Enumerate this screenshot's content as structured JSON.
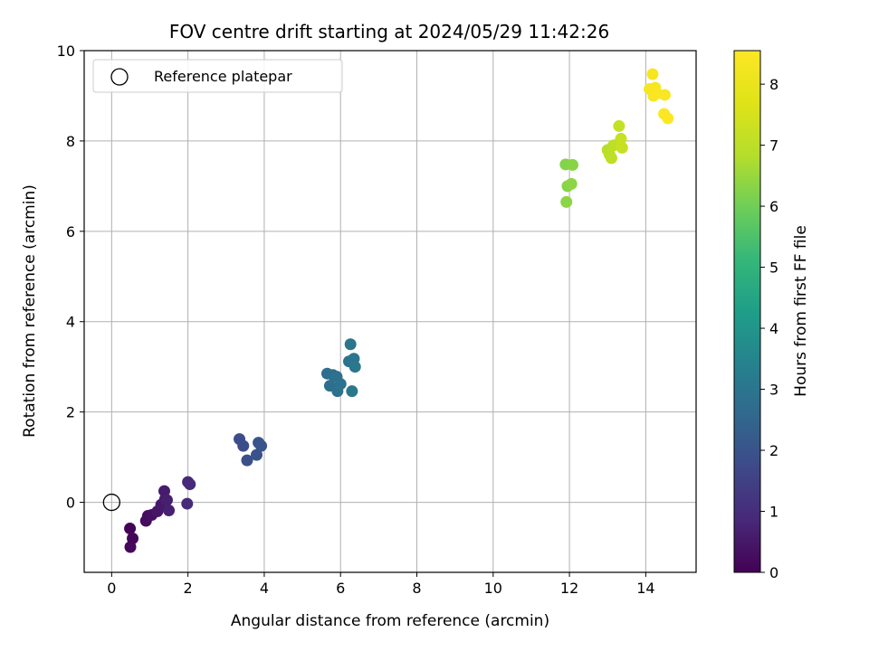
{
  "chart_data": {
    "type": "scatter",
    "title": "FOV centre drift starting at 2024/05/29 11:42:26",
    "xlabel": "Angular distance from reference (arcmin)",
    "ylabel": "Rotation from reference (arcmin)",
    "xlim": [
      -0.72,
      15.32
    ],
    "ylim": [
      -1.55,
      10
    ],
    "xticks": [
      0,
      2,
      4,
      6,
      8,
      10,
      12,
      14
    ],
    "yticks": [
      0,
      2,
      4,
      6,
      8,
      10
    ],
    "grid": true,
    "legend": {
      "placement": "top-left",
      "entries": [
        "Reference platepar"
      ]
    },
    "colorbar": {
      "label": "Hours from first FF file",
      "range": [
        0,
        8.55
      ],
      "ticks": [
        0,
        1,
        2,
        3,
        4,
        5,
        6,
        7,
        8
      ],
      "colormap": "viridis"
    },
    "reference_point": {
      "name": "Reference platepar",
      "x": 0,
      "y": 0
    },
    "points": [
      {
        "x": 0.48,
        "y": -0.58,
        "c": 0.05
      },
      {
        "x": 0.55,
        "y": -0.8,
        "c": 0.1
      },
      {
        "x": 0.49,
        "y": -0.99,
        "c": 0.15
      },
      {
        "x": 0.9,
        "y": -0.41,
        "c": 0.25
      },
      {
        "x": 0.95,
        "y": -0.3,
        "c": 0.3
      },
      {
        "x": 1.05,
        "y": -0.28,
        "c": 0.35
      },
      {
        "x": 1.2,
        "y": -0.2,
        "c": 0.45
      },
      {
        "x": 1.3,
        "y": -0.05,
        "c": 0.5
      },
      {
        "x": 1.4,
        "y": 0.07,
        "c": 0.55
      },
      {
        "x": 1.38,
        "y": 0.25,
        "c": 0.6
      },
      {
        "x": 1.45,
        "y": 0.05,
        "c": 0.65
      },
      {
        "x": 1.5,
        "y": -0.18,
        "c": 0.7
      },
      {
        "x": 2.0,
        "y": 0.45,
        "c": 0.85
      },
      {
        "x": 2.05,
        "y": 0.4,
        "c": 0.9
      },
      {
        "x": 1.98,
        "y": -0.03,
        "c": 0.95
      },
      {
        "x": 3.35,
        "y": 1.4,
        "c": 1.8
      },
      {
        "x": 3.45,
        "y": 1.25,
        "c": 1.85
      },
      {
        "x": 3.55,
        "y": 0.93,
        "c": 1.9
      },
      {
        "x": 3.8,
        "y": 1.05,
        "c": 1.95
      },
      {
        "x": 3.85,
        "y": 1.32,
        "c": 2.0
      },
      {
        "x": 3.92,
        "y": 1.25,
        "c": 2.05
      },
      {
        "x": 5.65,
        "y": 2.85,
        "c": 2.75
      },
      {
        "x": 5.72,
        "y": 2.58,
        "c": 2.8
      },
      {
        "x": 5.8,
        "y": 2.82,
        "c": 2.8
      },
      {
        "x": 5.9,
        "y": 2.78,
        "c": 2.85
      },
      {
        "x": 5.92,
        "y": 2.46,
        "c": 2.85
      },
      {
        "x": 6.0,
        "y": 2.62,
        "c": 2.9
      },
      {
        "x": 6.22,
        "y": 3.12,
        "c": 2.95
      },
      {
        "x": 6.26,
        "y": 3.5,
        "c": 3.0
      },
      {
        "x": 6.35,
        "y": 3.18,
        "c": 3.0
      },
      {
        "x": 6.38,
        "y": 3.0,
        "c": 3.05
      },
      {
        "x": 6.3,
        "y": 2.46,
        "c": 3.05
      },
      {
        "x": 11.9,
        "y": 7.48,
        "c": 6.25
      },
      {
        "x": 12.08,
        "y": 7.47,
        "c": 6.3
      },
      {
        "x": 11.95,
        "y": 7.0,
        "c": 6.3
      },
      {
        "x": 12.05,
        "y": 7.05,
        "c": 6.35
      },
      {
        "x": 11.92,
        "y": 6.65,
        "c": 6.35
      },
      {
        "x": 13.0,
        "y": 7.8,
        "c": 6.9
      },
      {
        "x": 13.05,
        "y": 7.7,
        "c": 6.95
      },
      {
        "x": 13.1,
        "y": 7.62,
        "c": 7.0
      },
      {
        "x": 13.15,
        "y": 7.9,
        "c": 7.0
      },
      {
        "x": 13.25,
        "y": 7.92,
        "c": 7.05
      },
      {
        "x": 13.3,
        "y": 8.33,
        "c": 7.15
      },
      {
        "x": 13.35,
        "y": 8.05,
        "c": 7.2
      },
      {
        "x": 13.38,
        "y": 7.85,
        "c": 7.2
      },
      {
        "x": 14.1,
        "y": 9.15,
        "c": 8.3
      },
      {
        "x": 14.18,
        "y": 9.48,
        "c": 8.35
      },
      {
        "x": 14.2,
        "y": 9.0,
        "c": 8.4
      },
      {
        "x": 14.25,
        "y": 9.18,
        "c": 8.4
      },
      {
        "x": 14.3,
        "y": 9.05,
        "c": 8.45
      },
      {
        "x": 14.5,
        "y": 9.02,
        "c": 8.45
      },
      {
        "x": 14.48,
        "y": 8.6,
        "c": 8.5
      },
      {
        "x": 14.58,
        "y": 8.5,
        "c": 8.55
      }
    ]
  }
}
